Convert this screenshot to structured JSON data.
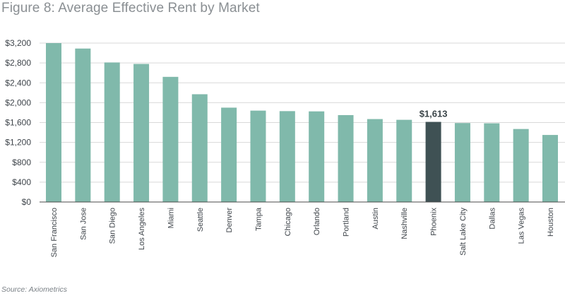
{
  "title": "Figure 8: Average Effective Rent by Market",
  "source": "Source: Axiometrics",
  "chart_data": {
    "type": "bar",
    "title": "Figure 8: Average Effective Rent by Market",
    "xlabel": "",
    "ylabel": "",
    "ylim": [
      0,
      3200
    ],
    "yticks": [
      0,
      400,
      800,
      1200,
      1600,
      2000,
      2400,
      2800,
      3200
    ],
    "ytick_labels": [
      "$0",
      "$400",
      "$800",
      "$1,200",
      "$1,600",
      "$2,000",
      "$2,400",
      "$2,800",
      "$3,200"
    ],
    "grid": true,
    "categories": [
      "San Francisco",
      "San Jose",
      "San Diego",
      "Los Angeles",
      "Miami",
      "Seattle",
      "Denver",
      "Tampa",
      "Chicago",
      "Orlando",
      "Portland",
      "Austin",
      "Nashville",
      "Phoenix",
      "Salt Lake City",
      "Dallas",
      "Las Vegas",
      "Houston"
    ],
    "values": [
      3200,
      3090,
      2810,
      2780,
      2520,
      2170,
      1900,
      1840,
      1830,
      1825,
      1750,
      1670,
      1655,
      1613,
      1590,
      1585,
      1470,
      1350
    ],
    "highlight_index": 13,
    "highlight_label": "$1,613",
    "colors": {
      "bar": "#80b9ab",
      "highlight": "#3f5154",
      "grid": "#d9d9d9",
      "axis": "#4a4a4a"
    }
  }
}
